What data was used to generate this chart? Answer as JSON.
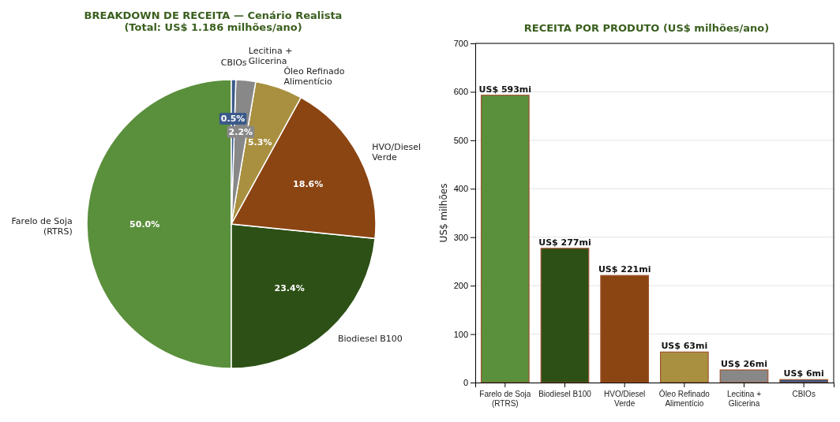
{
  "chart_data": [
    {
      "type": "pie",
      "title": "BREAKDOWN DE RECEITA — Cenário Realista\n(Total: US$ 1.186 milhões/ano)",
      "categories": [
        "Farelo de Soja\n(RTRS)",
        "Biodiesel B100",
        "HVO/Diesel\nVerde",
        "Óleo Refinado\nAlimentício",
        "Lecitina +\nGlicerina",
        "CBIOs"
      ],
      "values": [
        50.0,
        23.4,
        18.6,
        5.3,
        2.2,
        0.5
      ],
      "colors": [
        "#5a8f3c",
        "#2d5016",
        "#8b4513",
        "#a89040",
        "#888888",
        "#3b5a8a"
      ],
      "value_labels": [
        "50.0%",
        "23.4%",
        "18.6%",
        "5.3%",
        "2.2%",
        "0.5%"
      ]
    },
    {
      "type": "bar",
      "title": "RECEITA POR PRODUTO (US$ milhões/ano)",
      "ylabel": "US$ milhões",
      "categories": [
        "Farelo de Soja\n(RTRS)",
        "Biodiesel B100",
        "HVO/Diesel\nVerde",
        "Óleo Refinado\nAlimentício",
        "Lecitina +\nGlicerina",
        "CBIOs"
      ],
      "values": [
        593,
        277,
        221,
        63,
        26,
        6
      ],
      "colors": [
        "#5a8f3c",
        "#2d5016",
        "#8b4513",
        "#a89040",
        "#888888",
        "#3b5a8a"
      ],
      "value_labels": [
        "US$ 593mi",
        "US$ 277mi",
        "US$ 221mi",
        "US$ 63mi",
        "US$ 26mi",
        "US$ 6mi"
      ],
      "ylim": [
        0,
        700
      ],
      "yticks": [
        0,
        100,
        200,
        300,
        400,
        500,
        600,
        700
      ],
      "grid": "y"
    }
  ]
}
